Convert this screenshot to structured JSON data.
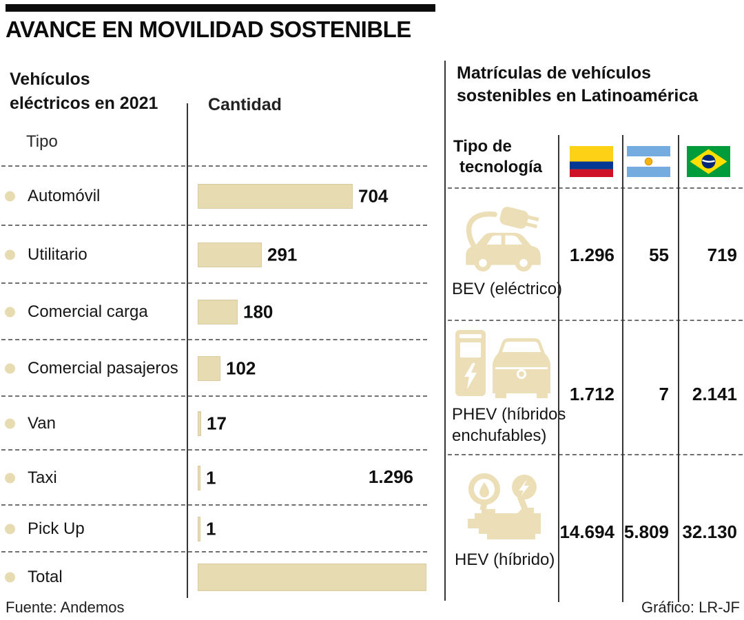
{
  "title": "AVANCE EN MOVILIDAD SOSTENIBLE",
  "left_chart": {
    "heading": "Vehículos\neléctricos en 2021",
    "amount_label": "Cantidad",
    "type_label": "Tipo",
    "total_label": "1.296",
    "rows": [
      {
        "label": "Automóvil",
        "value": "704",
        "num": 704
      },
      {
        "label": "Utilitario",
        "value": "291",
        "num": 291
      },
      {
        "label": "Comercial carga",
        "value": "180",
        "num": 180
      },
      {
        "label": "Comercial pasajeros",
        "value": "102",
        "num": 102
      },
      {
        "label": "Van",
        "value": "17",
        "num": 17
      },
      {
        "label": "Taxi",
        "value": "1",
        "num": 1
      },
      {
        "label": "Pick Up",
        "value": "1",
        "num": 1
      },
      {
        "label": "Total",
        "value": "",
        "num": 1296
      }
    ]
  },
  "right_table": {
    "heading": "Matrículas de vehículos\nsostenibles en Latinoamérica",
    "header_col_line1": "Tipo de",
    "header_col_line2": "tecnología",
    "columns": [
      "Colombia",
      "Argentina",
      "Brasil"
    ],
    "rows": [
      {
        "label": "BEV (eléctrico)",
        "label2": "",
        "icon": "electric-car-plug-icon",
        "values": [
          "1.296",
          "55",
          "719"
        ]
      },
      {
        "label": "PHEV (híbridos",
        "label2": "enchufables)",
        "icon": "charging-station-car-icon",
        "values": [
          "1.712",
          "7",
          "2.141"
        ]
      },
      {
        "label": "HEV (híbrido)",
        "label2": "",
        "icon": "hybrid-engine-icon",
        "values": [
          "14.694",
          "5.809",
          "32.130"
        ]
      }
    ]
  },
  "footer": {
    "source": "Fuente: Andemos",
    "credit": "Gráfico: LR-JF"
  },
  "colors": {
    "bar_fill": "#e7dbb2",
    "icon_fill": "#ecdfb8",
    "colombia_flag": [
      "#FCD116",
      "#003893",
      "#CE1126"
    ],
    "argentina_flag": [
      "#74ACDF",
      "#FFFFFF",
      "#F6B40E"
    ],
    "brazil_flag": [
      "#009C3B",
      "#FFDF00",
      "#002776"
    ]
  },
  "chart_data": [
    {
      "type": "bar",
      "orientation": "horizontal",
      "title": "Vehículos eléctricos en 2021",
      "xlabel": "Cantidad",
      "ylabel": "Tipo",
      "categories": [
        "Automóvil",
        "Utilitario",
        "Comercial carga",
        "Comercial pasajeros",
        "Van",
        "Taxi",
        "Pick Up",
        "Total"
      ],
      "values": [
        704,
        291,
        180,
        102,
        17,
        1,
        1,
        1296
      ],
      "total": 1296,
      "grid": "dashed-row-separators",
      "bar_color": "#e7dbb2"
    },
    {
      "type": "table",
      "title": "Matrículas de vehículos sostenibles en Latinoamérica",
      "row_header": "Tipo de tecnología",
      "columns": [
        "Colombia",
        "Argentina",
        "Brasil"
      ],
      "rows": [
        {
          "label": "BEV (eléctrico)",
          "values": [
            1296,
            55,
            719
          ]
        },
        {
          "label": "PHEV (híbridos enchufables)",
          "values": [
            1712,
            7,
            2141
          ]
        },
        {
          "label": "HEV (híbrido)",
          "values": [
            14694,
            5809,
            32130
          ]
        }
      ]
    }
  ]
}
